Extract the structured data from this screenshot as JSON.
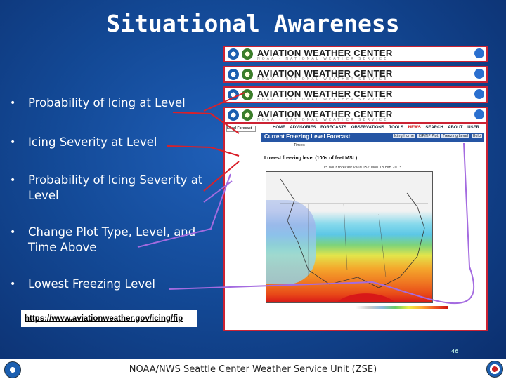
{
  "slide": {
    "title": "Situational Awareness",
    "bullets": [
      "Probability of Icing at Level",
      "Icing Severity at Level",
      "Probability of Icing Severity at Level",
      "Change Plot Type, Level, and Time Above",
      "Lowest Freezing Level"
    ],
    "bullet_marker": "•",
    "link_text": "https://www.aviationweather.gov/icing/fip",
    "page_number": "46",
    "footer_text": "NOAA/NWS Seattle Center Weather Service Unit (ZSE)"
  },
  "screenshot": {
    "banner_title": "AVIATION WEATHER CENTER",
    "banner_subtitle": "NOAA · NATIONAL WEATHER SERVICE",
    "search_placeholder": "Local Forecast",
    "nav_items": [
      "HOME",
      "ADVISORIES",
      "FORECASTS",
      "OBSERVATIONS",
      "TOOLS",
      "NEWS",
      "SEARCH",
      "ABOUT",
      "USER"
    ],
    "section_title": "Current Freezing Level Forecast",
    "tabs": [
      "Icing Home",
      "CIP/FIP Plot",
      "Freezing Level",
      "Help"
    ],
    "times_label": "Times:",
    "map_title": "Lowest freezing level (100s of feet MSL)",
    "map_subtitle": "15 hour forecast valid 15Z Mon 18 Feb 2013"
  },
  "colors": {
    "background": "#134996",
    "banner_border": "#cc2233",
    "connector_red": "#d9202a",
    "connector_purple": "#a46be0"
  }
}
